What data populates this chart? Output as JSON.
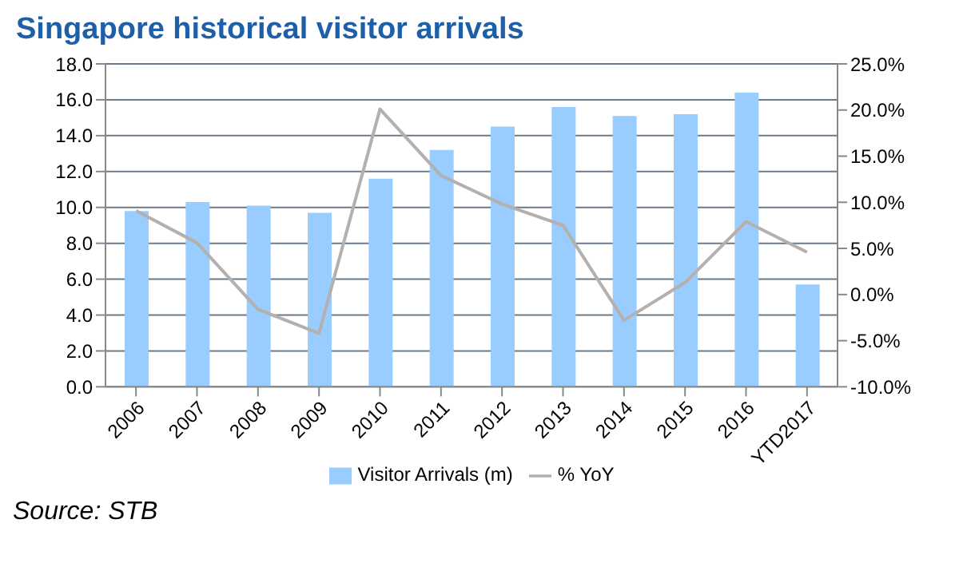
{
  "chart_data": {
    "type": "bar",
    "title": "Singapore historical visitor arrivals",
    "categories": [
      "2006",
      "2007",
      "2008",
      "2009",
      "2010",
      "2011",
      "2012",
      "2013",
      "2014",
      "2015",
      "2016",
      "YTD2017"
    ],
    "series": [
      {
        "name": "Visitor Arrivals (m)",
        "color": "#99ccff",
        "values": [
          9.8,
          10.3,
          10.1,
          9.7,
          11.6,
          13.2,
          14.5,
          15.6,
          15.1,
          15.2,
          16.4,
          5.7
        ]
      },
      {
        "name": "%  YoY",
        "type": "line",
        "axis": "y2",
        "color": "#b3b0ad",
        "values": [
          9.1,
          5.6,
          -1.6,
          -4.2,
          20.1,
          12.9,
          9.8,
          7.5,
          -2.8,
          1.3,
          7.9,
          4.6
        ]
      }
    ],
    "ylim": [
      0,
      18
    ],
    "yticks": [
      {
        "value": 0,
        "label": "0.0"
      },
      {
        "value": 2,
        "label": "2.0"
      },
      {
        "value": 4,
        "label": "4.0"
      },
      {
        "value": 6,
        "label": "6.0"
      },
      {
        "value": 8,
        "label": "8.0"
      },
      {
        "value": 10,
        "label": "10.0"
      },
      {
        "value": 12,
        "label": "12.0"
      },
      {
        "value": 14,
        "label": "14.0"
      },
      {
        "value": 16,
        "label": "16.0"
      },
      {
        "value": 18,
        "label": "18.0"
      }
    ],
    "y2lim": [
      -10,
      25
    ],
    "y2ticks": [
      {
        "value": -10,
        "label": "-10.0%"
      },
      {
        "value": -5,
        "label": "-5.0%"
      },
      {
        "value": 0,
        "label": "0.0%"
      },
      {
        "value": 5,
        "label": "5.0%"
      },
      {
        "value": 10,
        "label": "10.0%"
      },
      {
        "value": 15,
        "label": "15.0%"
      },
      {
        "value": 20,
        "label": "20.0%"
      },
      {
        "value": 25,
        "label": "25.0%"
      }
    ],
    "grid": "y",
    "legend": "bottom",
    "marker": "none",
    "line_style": "solid",
    "annotations": [
      "Source: STB"
    ]
  }
}
